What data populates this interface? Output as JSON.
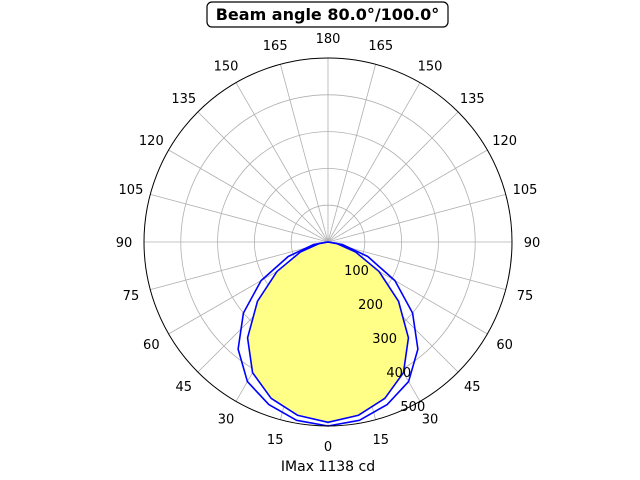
{
  "chart_data": {
    "type": "polar-line",
    "title": "Beam angle 80.0°/100.0°",
    "xlabel": "IMax 1138 cd",
    "angle_tick_labels": [
      "0",
      "15",
      "30",
      "45",
      "60",
      "75",
      "90",
      "105",
      "120",
      "135",
      "150",
      "165",
      "180",
      "165",
      "150",
      "135",
      "120",
      "105",
      "90",
      "75",
      "60",
      "45",
      "30",
      "15"
    ],
    "radial_ticks": [
      100,
      200,
      300,
      400,
      500
    ],
    "radial_range": [
      0,
      500
    ],
    "grid": true,
    "series": [
      {
        "color": "#0000ff",
        "fill": "#ffff88",
        "angles_deg": [
          0,
          10,
          20,
          30,
          40,
          50,
          60,
          70,
          80,
          90
        ],
        "values": [
          490,
          478,
          452,
          410,
          340,
          250,
          160,
          80,
          25,
          0
        ]
      },
      {
        "color": "#0000ff",
        "fill": null,
        "angles_deg": [
          0,
          10,
          20,
          30,
          40,
          50,
          60,
          70,
          80,
          90
        ],
        "values": [
          500,
          492,
          470,
          438,
          380,
          300,
          210,
          115,
          40,
          0
        ]
      }
    ]
  }
}
